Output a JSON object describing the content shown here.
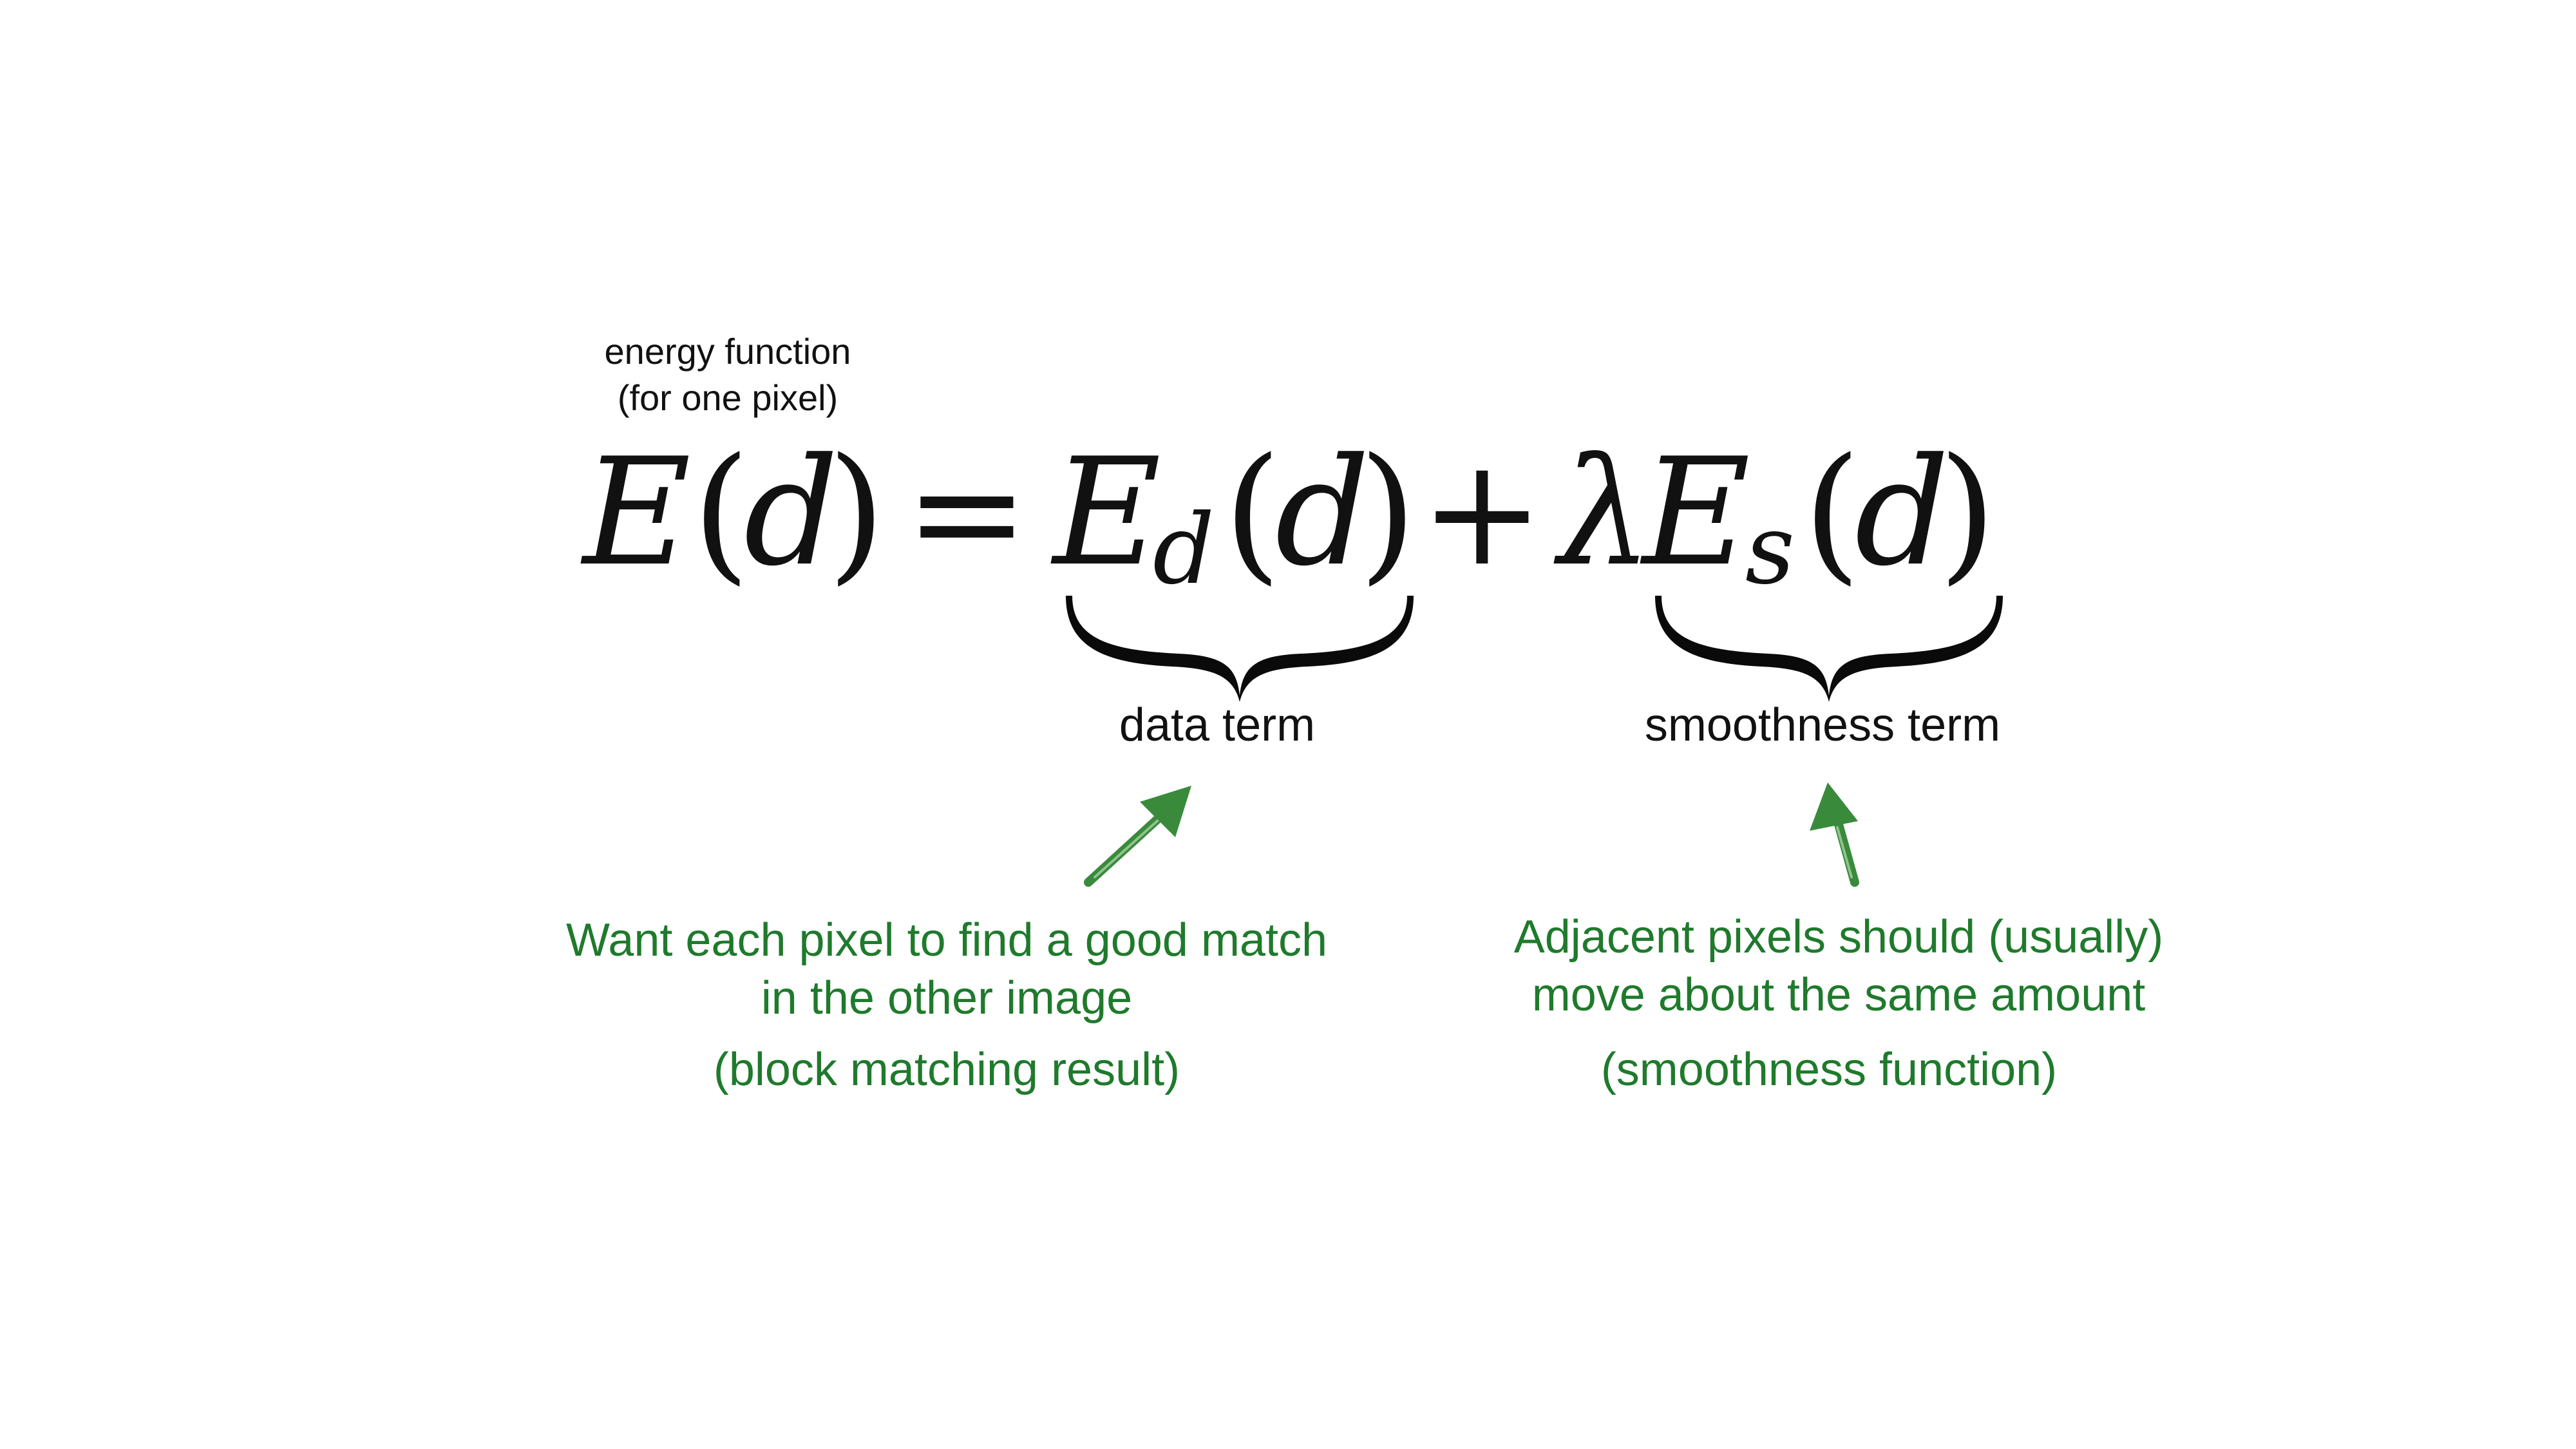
{
  "labels": {
    "energy_line1": "energy function",
    "energy_line2": "(for one pixel)",
    "data_term": "data term",
    "smoothness_term": "smoothness term",
    "left_note_line1": "Want each pixel to find a good match",
    "left_note_line2": "in the other image",
    "left_note_sub": "(block matching result)",
    "right_note_line1": "Adjacent pixels should (usually)",
    "right_note_line2": "move about the same amount",
    "right_note_sub": "(smoothness function)"
  },
  "equation": {
    "E": "E",
    "lparen": "(",
    "d": "d",
    "rparen": ")",
    "equals": "=",
    "Ed_base": "E",
    "Ed_sub": "d",
    "plus": "+",
    "lambda": "λ",
    "Es_base": "E",
    "Es_sub": "s"
  },
  "colors": {
    "text": "#111111",
    "note_green": "#1f7a2c",
    "arrow_green": "#3a8a3c"
  },
  "icons": {
    "left_arrow": "arrow-up-right-icon",
    "right_arrow": "arrow-up-icon",
    "brace": "underbrace-icon"
  }
}
